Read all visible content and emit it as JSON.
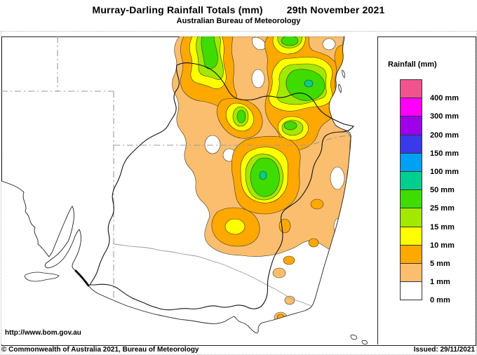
{
  "header": {
    "title": "Murray-Darling Rainfall Totals (mm)",
    "date": "29th November 2021",
    "subtitle": "Australian Bureau of Meteorology"
  },
  "map": {
    "url_label": "http://www.bom.gov.au"
  },
  "footer": {
    "copyright": "© Commonwealth of Australia 2021, Bureau of Meteorology",
    "issued": "Issued: 29/11/2021"
  },
  "legend": {
    "title": "Rainfall (mm)",
    "entries": [
      {
        "label": "400 mm",
        "color": "#f0548e"
      },
      {
        "label": "300 mm",
        "color": "#ff00ff"
      },
      {
        "label": "200 mm",
        "color": "#9d00e8"
      },
      {
        "label": "150 mm",
        "color": "#3a3ae8"
      },
      {
        "label": "100 mm",
        "color": "#00a0f4"
      },
      {
        "label": "50 mm",
        "color": "#00ce8e"
      },
      {
        "label": "25 mm",
        "color": "#3edc00"
      },
      {
        "label": "15 mm",
        "color": "#a2e800"
      },
      {
        "label": "10 mm",
        "color": "#ffff00"
      },
      {
        "label": "5 mm",
        "color": "#ffa800"
      },
      {
        "label": "1 mm",
        "color": "#fbbe6e"
      },
      {
        "label": "0 mm",
        "color": "#ffffff"
      }
    ]
  },
  "palette": {
    "sandy": "#fbbe6e",
    "orange": "#ffa800",
    "yellow": "#ffff00",
    "yellowgreen": "#a2e800",
    "green": "#3edc00",
    "springgreen": "#00ce8e",
    "ocean": "#ffffff",
    "land": "#ffffff"
  }
}
